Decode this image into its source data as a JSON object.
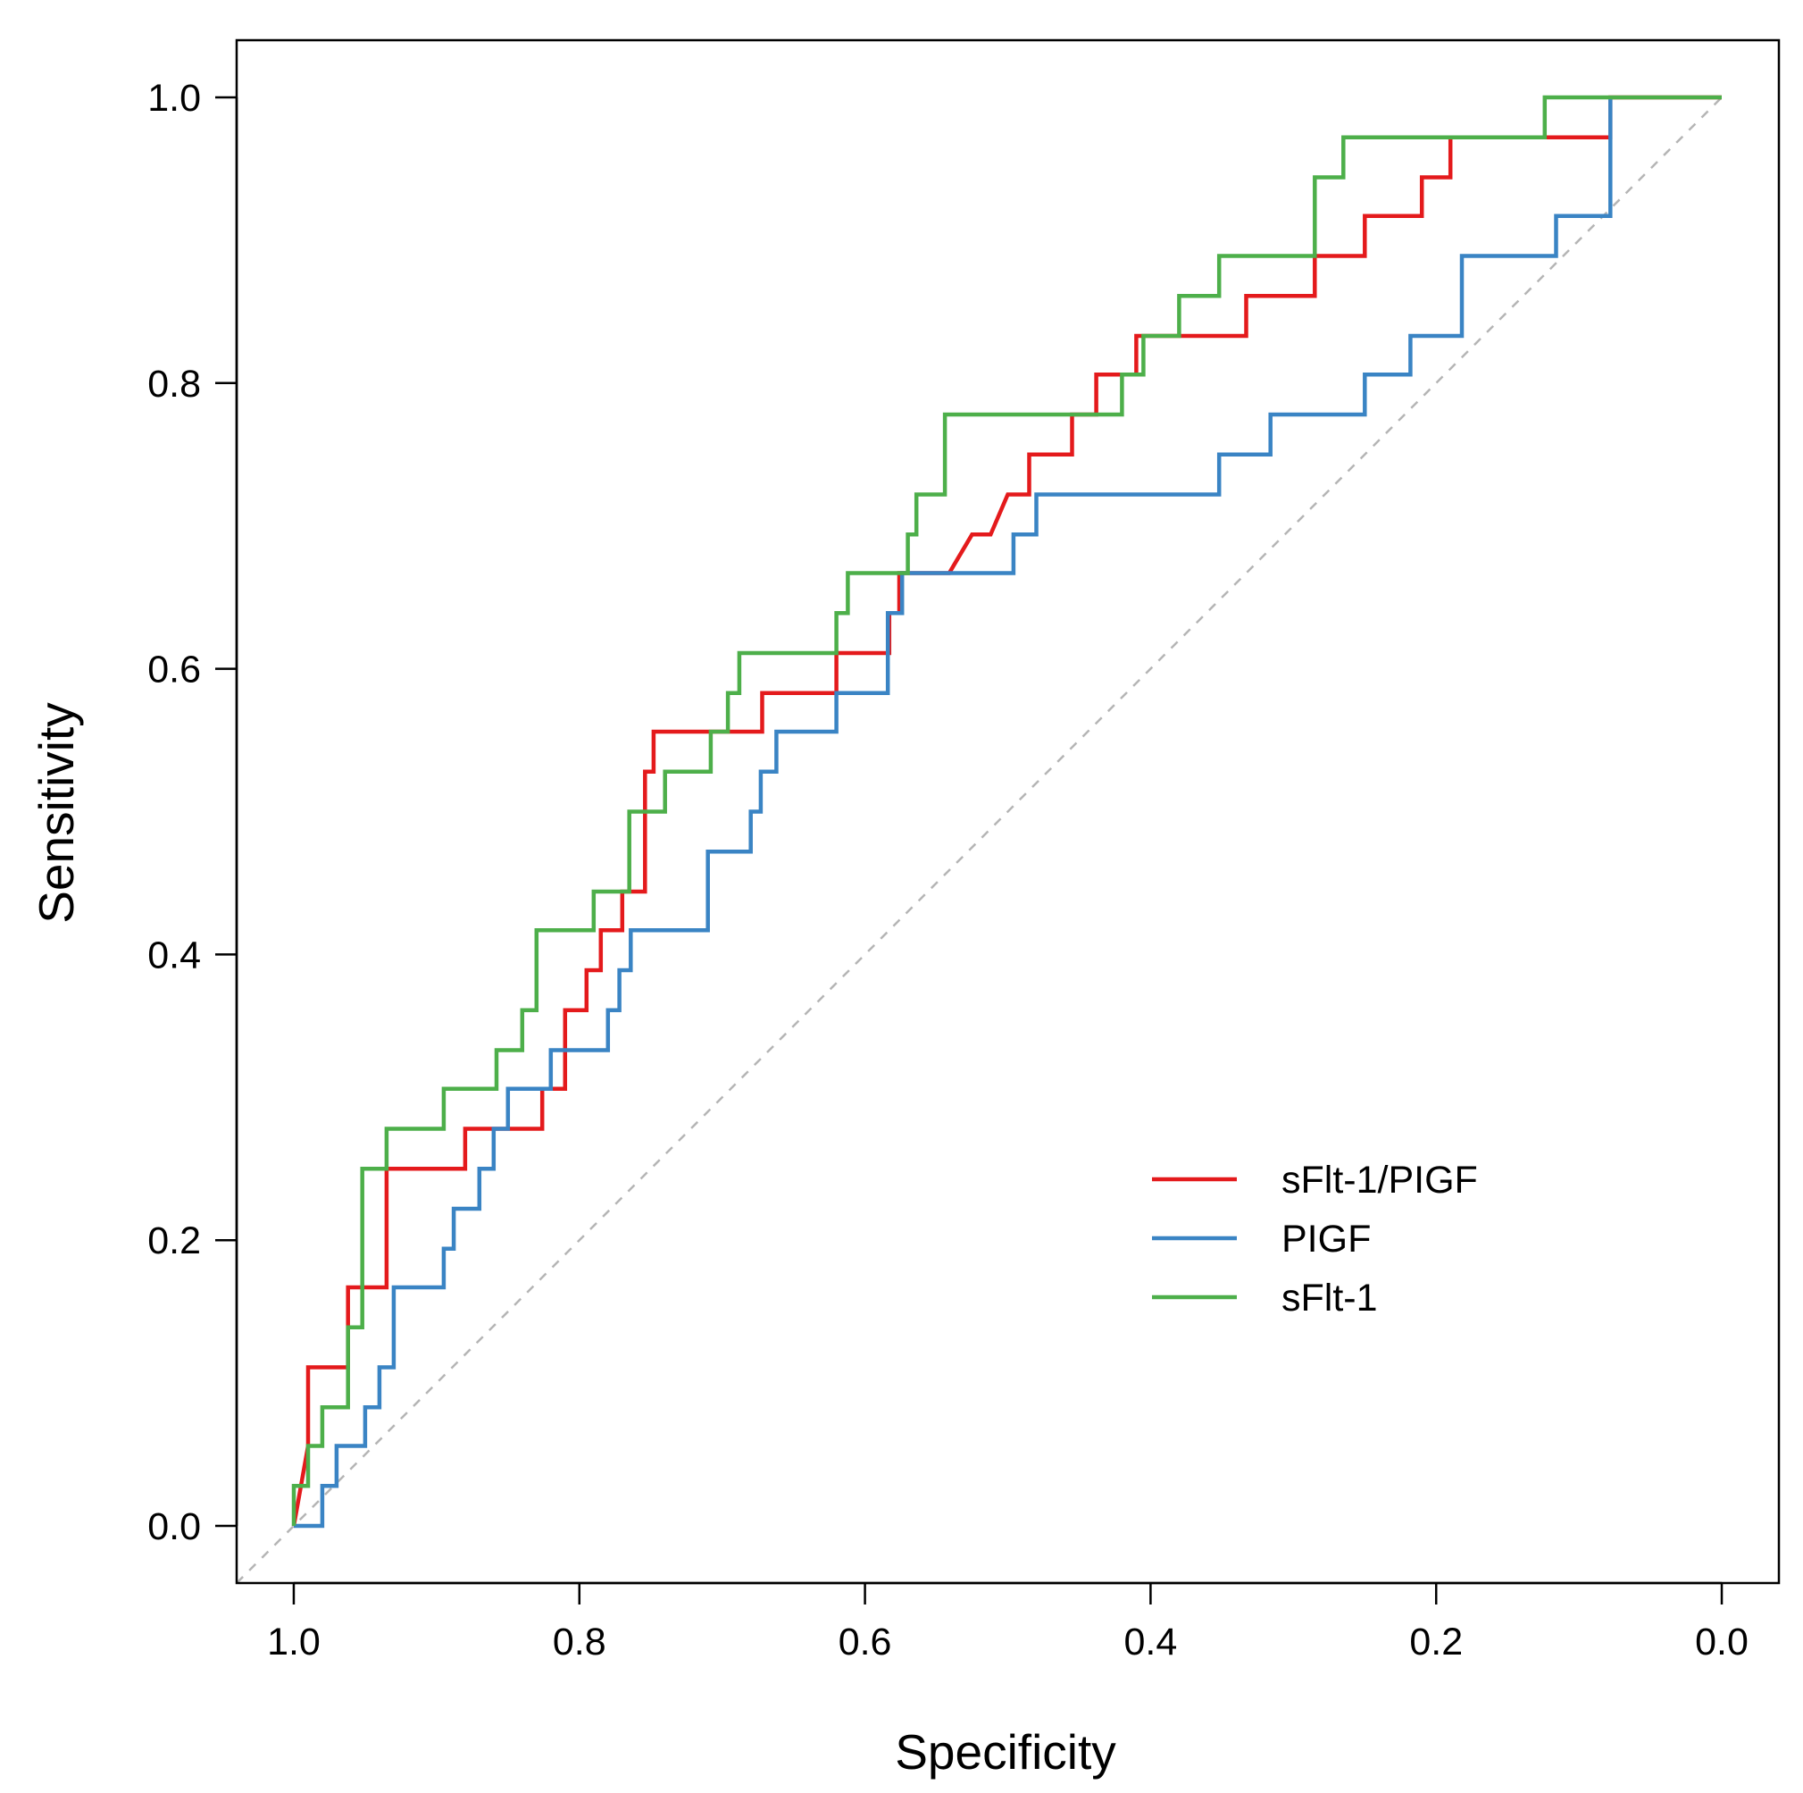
{
  "chart_data": {
    "type": "line",
    "xlabel": "Specificity",
    "ylabel": "Sensitivity",
    "x_axis_reversed": true,
    "xlim": [
      1.04,
      -0.04
    ],
    "ylim": [
      -0.04,
      1.04
    ],
    "x_ticks": [
      1.0,
      0.8,
      0.6,
      0.4,
      0.2,
      0.0
    ],
    "x_tick_labels": [
      "1.0",
      "0.8",
      "0.6",
      "0.4",
      "0.2",
      "0.0"
    ],
    "y_ticks": [
      0.0,
      0.2,
      0.4,
      0.6,
      0.8,
      1.0
    ],
    "y_tick_labels": [
      "0.0",
      "0.2",
      "0.4",
      "0.6",
      "0.8",
      "1.0"
    ],
    "grid": false,
    "legend_position": "bottom-right",
    "reference_line": {
      "from": [
        1.04,
        -0.04
      ],
      "to": [
        0.0,
        1.0
      ],
      "color": "#b5b5b5",
      "style": "dashed"
    },
    "series": [
      {
        "name": "sFlt-1/PIGF",
        "color": "#e41a1c",
        "points": [
          [
            1.0,
            0.0
          ],
          [
            0.99,
            0.056
          ],
          [
            0.99,
            0.111
          ],
          [
            0.962,
            0.111
          ],
          [
            0.962,
            0.167
          ],
          [
            0.935,
            0.167
          ],
          [
            0.935,
            0.25
          ],
          [
            0.88,
            0.25
          ],
          [
            0.88,
            0.278
          ],
          [
            0.85,
            0.278
          ],
          [
            0.826,
            0.278
          ],
          [
            0.826,
            0.306
          ],
          [
            0.81,
            0.306
          ],
          [
            0.81,
            0.361
          ],
          [
            0.795,
            0.361
          ],
          [
            0.795,
            0.389
          ],
          [
            0.785,
            0.389
          ],
          [
            0.785,
            0.417
          ],
          [
            0.77,
            0.417
          ],
          [
            0.77,
            0.444
          ],
          [
            0.754,
            0.444
          ],
          [
            0.754,
            0.528
          ],
          [
            0.748,
            0.528
          ],
          [
            0.748,
            0.556
          ],
          [
            0.704,
            0.556
          ],
          [
            0.672,
            0.556
          ],
          [
            0.672,
            0.583
          ],
          [
            0.62,
            0.583
          ],
          [
            0.62,
            0.611
          ],
          [
            0.583,
            0.611
          ],
          [
            0.583,
            0.639
          ],
          [
            0.576,
            0.639
          ],
          [
            0.576,
            0.667
          ],
          [
            0.541,
            0.667
          ],
          [
            0.525,
            0.694
          ],
          [
            0.512,
            0.694
          ],
          [
            0.5,
            0.722
          ],
          [
            0.485,
            0.722
          ],
          [
            0.485,
            0.75
          ],
          [
            0.455,
            0.75
          ],
          [
            0.455,
            0.778
          ],
          [
            0.438,
            0.778
          ],
          [
            0.438,
            0.806
          ],
          [
            0.41,
            0.806
          ],
          [
            0.41,
            0.833
          ],
          [
            0.333,
            0.833
          ],
          [
            0.333,
            0.861
          ],
          [
            0.285,
            0.861
          ],
          [
            0.285,
            0.889
          ],
          [
            0.25,
            0.889
          ],
          [
            0.25,
            0.917
          ],
          [
            0.21,
            0.917
          ],
          [
            0.21,
            0.944
          ],
          [
            0.19,
            0.944
          ],
          [
            0.19,
            0.972
          ],
          [
            0.078,
            0.972
          ],
          [
            0.078,
            1.0
          ],
          [
            0.0,
            1.0
          ]
        ]
      },
      {
        "name": "PIGF",
        "color": "#3a84c4",
        "points": [
          [
            1.0,
            0.0
          ],
          [
            0.98,
            0.0
          ],
          [
            0.98,
            0.028
          ],
          [
            0.97,
            0.028
          ],
          [
            0.97,
            0.056
          ],
          [
            0.95,
            0.056
          ],
          [
            0.95,
            0.083
          ],
          [
            0.94,
            0.083
          ],
          [
            0.94,
            0.111
          ],
          [
            0.93,
            0.111
          ],
          [
            0.93,
            0.167
          ],
          [
            0.895,
            0.167
          ],
          [
            0.895,
            0.194
          ],
          [
            0.888,
            0.194
          ],
          [
            0.888,
            0.222
          ],
          [
            0.87,
            0.222
          ],
          [
            0.87,
            0.25
          ],
          [
            0.86,
            0.25
          ],
          [
            0.86,
            0.278
          ],
          [
            0.85,
            0.278
          ],
          [
            0.85,
            0.306
          ],
          [
            0.82,
            0.306
          ],
          [
            0.82,
            0.333
          ],
          [
            0.78,
            0.333
          ],
          [
            0.78,
            0.361
          ],
          [
            0.772,
            0.361
          ],
          [
            0.772,
            0.389
          ],
          [
            0.764,
            0.389
          ],
          [
            0.764,
            0.417
          ],
          [
            0.71,
            0.417
          ],
          [
            0.71,
            0.472
          ],
          [
            0.68,
            0.472
          ],
          [
            0.68,
            0.5
          ],
          [
            0.673,
            0.5
          ],
          [
            0.673,
            0.528
          ],
          [
            0.662,
            0.528
          ],
          [
            0.662,
            0.556
          ],
          [
            0.62,
            0.556
          ],
          [
            0.62,
            0.583
          ],
          [
            0.584,
            0.583
          ],
          [
            0.584,
            0.639
          ],
          [
            0.574,
            0.639
          ],
          [
            0.574,
            0.667
          ],
          [
            0.496,
            0.667
          ],
          [
            0.496,
            0.694
          ],
          [
            0.48,
            0.694
          ],
          [
            0.48,
            0.722
          ],
          [
            0.352,
            0.722
          ],
          [
            0.352,
            0.75
          ],
          [
            0.316,
            0.75
          ],
          [
            0.316,
            0.778
          ],
          [
            0.25,
            0.778
          ],
          [
            0.25,
            0.806
          ],
          [
            0.218,
            0.806
          ],
          [
            0.218,
            0.833
          ],
          [
            0.182,
            0.833
          ],
          [
            0.182,
            0.889
          ],
          [
            0.116,
            0.889
          ],
          [
            0.116,
            0.917
          ],
          [
            0.078,
            0.917
          ],
          [
            0.078,
            1.0
          ]
        ]
      },
      {
        "name": "sFlt-1",
        "color": "#4daf4a",
        "points": [
          [
            1.0,
            0.0
          ],
          [
            1.0,
            0.028
          ],
          [
            0.99,
            0.028
          ],
          [
            0.99,
            0.056
          ],
          [
            0.98,
            0.056
          ],
          [
            0.98,
            0.083
          ],
          [
            0.962,
            0.083
          ],
          [
            0.962,
            0.139
          ],
          [
            0.952,
            0.139
          ],
          [
            0.952,
            0.25
          ],
          [
            0.935,
            0.25
          ],
          [
            0.935,
            0.278
          ],
          [
            0.895,
            0.278
          ],
          [
            0.895,
            0.306
          ],
          [
            0.858,
            0.306
          ],
          [
            0.858,
            0.333
          ],
          [
            0.84,
            0.333
          ],
          [
            0.84,
            0.361
          ],
          [
            0.83,
            0.361
          ],
          [
            0.83,
            0.417
          ],
          [
            0.79,
            0.417
          ],
          [
            0.79,
            0.444
          ],
          [
            0.765,
            0.444
          ],
          [
            0.765,
            0.5
          ],
          [
            0.74,
            0.5
          ],
          [
            0.74,
            0.528
          ],
          [
            0.708,
            0.528
          ],
          [
            0.708,
            0.556
          ],
          [
            0.696,
            0.556
          ],
          [
            0.696,
            0.583
          ],
          [
            0.688,
            0.583
          ],
          [
            0.688,
            0.611
          ],
          [
            0.62,
            0.611
          ],
          [
            0.62,
            0.639
          ],
          [
            0.612,
            0.639
          ],
          [
            0.612,
            0.667
          ],
          [
            0.57,
            0.667
          ],
          [
            0.57,
            0.694
          ],
          [
            0.564,
            0.694
          ],
          [
            0.564,
            0.722
          ],
          [
            0.544,
            0.722
          ],
          [
            0.544,
            0.778
          ],
          [
            0.42,
            0.778
          ],
          [
            0.42,
            0.806
          ],
          [
            0.405,
            0.806
          ],
          [
            0.405,
            0.833
          ],
          [
            0.38,
            0.833
          ],
          [
            0.38,
            0.861
          ],
          [
            0.352,
            0.861
          ],
          [
            0.352,
            0.889
          ],
          [
            0.285,
            0.889
          ],
          [
            0.285,
            0.944
          ],
          [
            0.265,
            0.944
          ],
          [
            0.265,
            0.972
          ],
          [
            0.124,
            0.972
          ],
          [
            0.124,
            1.0
          ],
          [
            0.0,
            1.0
          ]
        ]
      }
    ]
  }
}
